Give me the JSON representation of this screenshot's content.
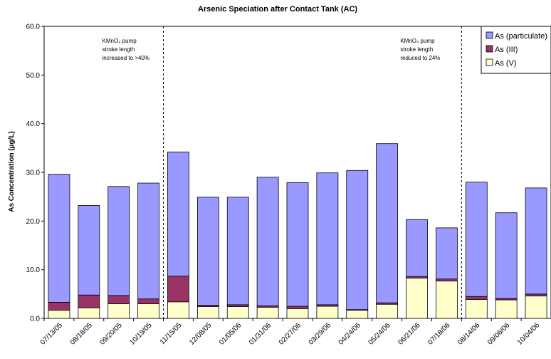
{
  "chart_data": {
    "type": "bar",
    "stacked": true,
    "title": "Arsenic Speciation after Contact Tank (AC)",
    "ylabel": "As Concentration (µg/L)",
    "xlabel": "",
    "ylim": [
      0,
      60
    ],
    "yticks": [
      "0.0",
      "10.0",
      "20.0",
      "30.0",
      "40.0",
      "50.0",
      "60.0"
    ],
    "legend_position": "top-right",
    "categories": [
      "07/13/05",
      "08/18/05",
      "09/20/05",
      "10/19/05",
      "11/15/05",
      "12/08/05",
      "01/05/06",
      "01/31/06",
      "02/27/06",
      "03/29/06",
      "04/24/06",
      "05/24/06",
      "06/21/06",
      "07/18/06",
      "08/14/06",
      "09/06/06",
      "10/04/06"
    ],
    "series": [
      {
        "name": "As (V)",
        "color": "#FFFFCC",
        "values": [
          1.7,
          2.2,
          3.0,
          3.0,
          3.4,
          2.4,
          2.4,
          2.3,
          2.0,
          2.5,
          1.7,
          2.9,
          8.3,
          7.7,
          3.9,
          3.8,
          4.6
        ]
      },
      {
        "name": "As (III)",
        "color": "#993366",
        "values": [
          1.6,
          2.6,
          1.7,
          1.0,
          5.3,
          0.3,
          0.4,
          0.3,
          0.5,
          0.3,
          0.1,
          0.3,
          0.3,
          0.4,
          0.6,
          0.3,
          0.4
        ]
      },
      {
        "name": "As (particulate)",
        "color": "#9999FF",
        "values": [
          26.3,
          18.4,
          22.4,
          23.8,
          25.5,
          22.2,
          22.1,
          26.4,
          25.4,
          27.1,
          28.6,
          32.7,
          11.7,
          10.5,
          23.5,
          17.6,
          21.8
        ]
      }
    ],
    "legend_order": [
      "As (particulate)",
      "As (III)",
      "As (V)"
    ],
    "annotations": [
      {
        "after_category": "10/19/05",
        "lines": [
          "KMnO₄ pump",
          "stroke length",
          "increased to >40%"
        ]
      },
      {
        "after_category": "07/18/06",
        "lines": [
          "KMnO₄ pump",
          "stroke length",
          "reduced to 24%"
        ]
      }
    ]
  }
}
